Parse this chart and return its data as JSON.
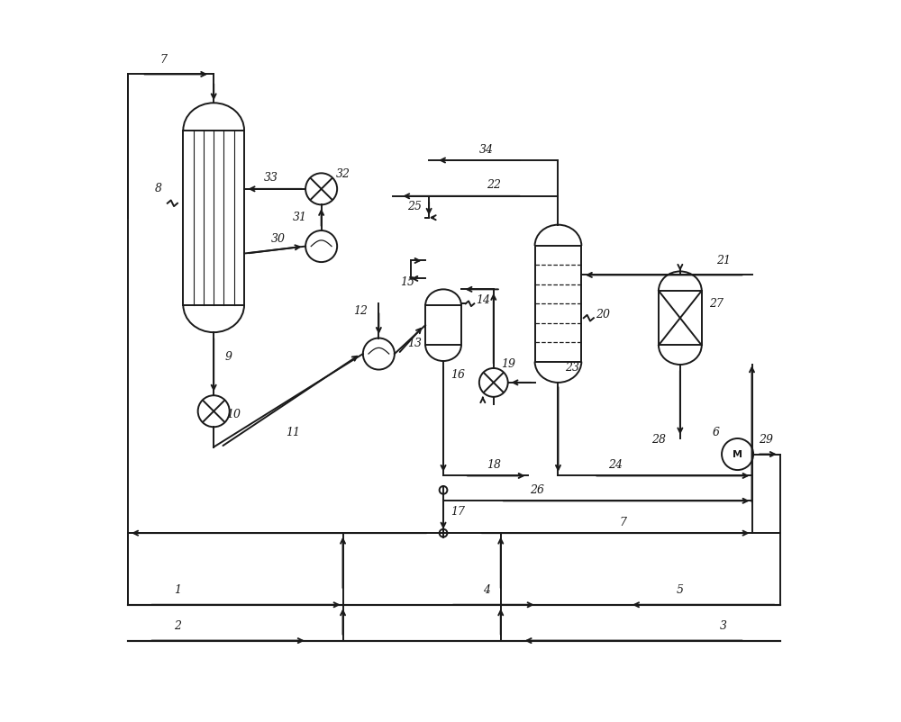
{
  "bg_color": "#ffffff",
  "line_color": "#1a1a1a",
  "lw": 1.4,
  "fig_w": 10.0,
  "fig_h": 8.02,
  "dpi": 100,
  "xlim": [
    0,
    100
  ],
  "ylim": [
    0,
    100
  ],
  "font_size": 9
}
